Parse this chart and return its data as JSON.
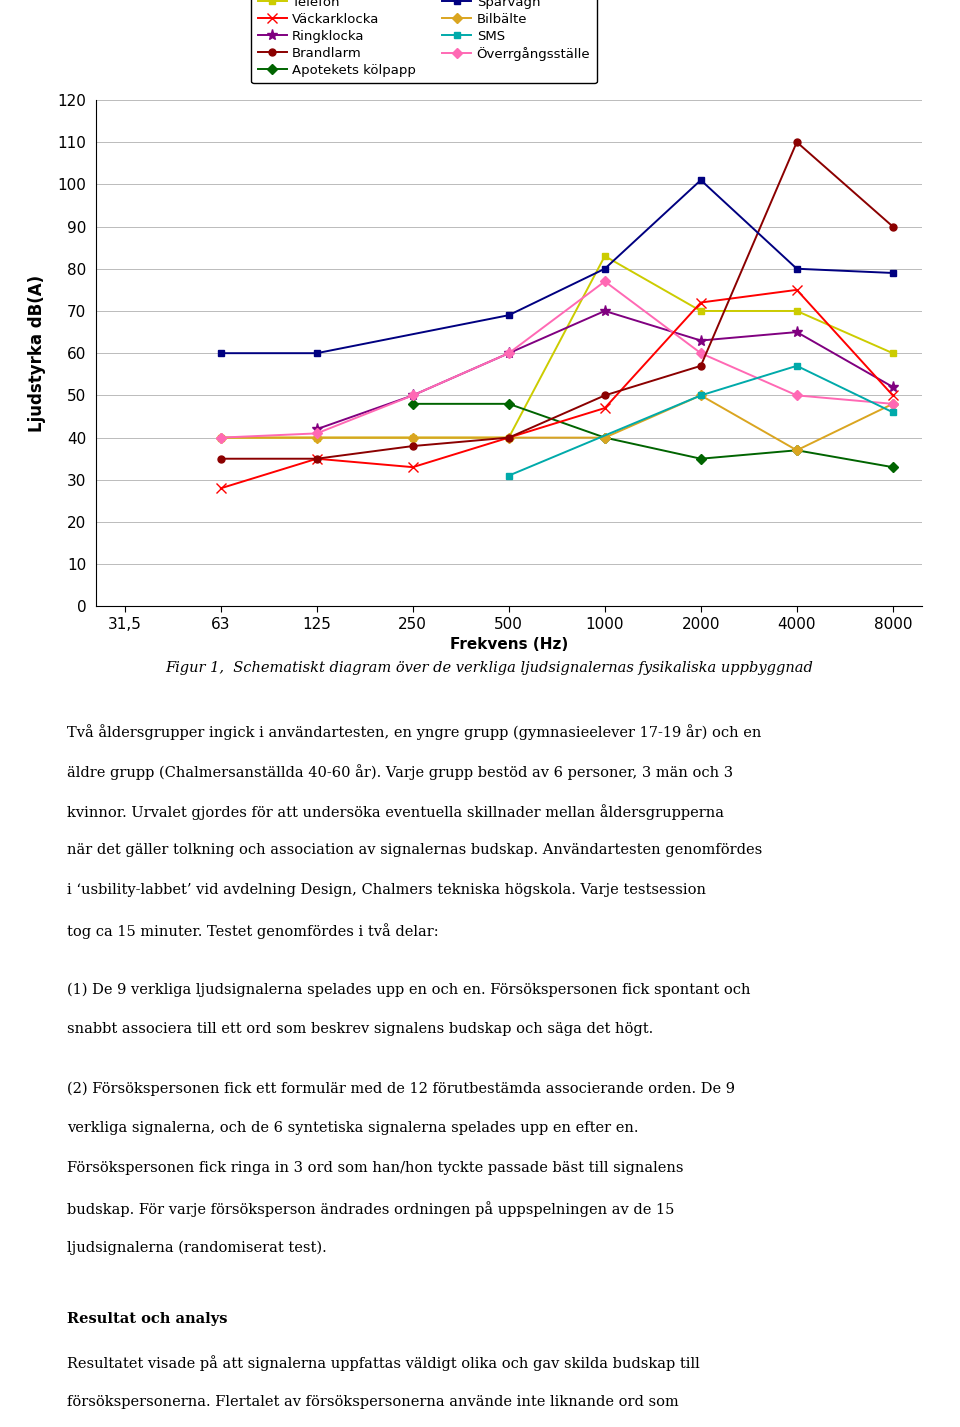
{
  "x_labels": [
    "31,5",
    "63",
    "125",
    "250",
    "500",
    "1000",
    "2000",
    "4000",
    "8000"
  ],
  "series_order_left": [
    "Telefon",
    "Ringklocka",
    "Apotekets kölpapp",
    "Bilbälte",
    "Överrgångsställe"
  ],
  "series_order_right": [
    "Väckarklocka",
    "Brandlarm",
    "Spårvagn",
    "SMS"
  ],
  "series": {
    "Telefon": {
      "color": "#CCCC00",
      "marker": "s",
      "markersize": 5,
      "values": [
        null,
        40,
        40,
        40,
        40,
        83,
        70,
        70,
        60
      ]
    },
    "Väckarklocka": {
      "color": "#FF0000",
      "marker": "x",
      "markersize": 7,
      "values": [
        null,
        28,
        35,
        33,
        null,
        47,
        72,
        75,
        50
      ]
    },
    "Ringklocka": {
      "color": "#800080",
      "marker": "*",
      "markersize": 8,
      "values": [
        null,
        null,
        42,
        50,
        60,
        70,
        63,
        65,
        52
      ]
    },
    "Brandlarm": {
      "color": "#8B0000",
      "marker": "o",
      "markersize": 5,
      "values": [
        null,
        35,
        35,
        38,
        40,
        50,
        57,
        110,
        90
      ]
    },
    "Apotekets kölpapp": {
      "color": "#006400",
      "marker": "D",
      "markersize": 5,
      "values": [
        null,
        null,
        null,
        48,
        48,
        40,
        35,
        37,
        33
      ]
    },
    "Spårvagn": {
      "color": "#000080",
      "marker": "s",
      "markersize": 5,
      "values": [
        null,
        60,
        60,
        null,
        69,
        80,
        101,
        80,
        79
      ]
    },
    "Bilbälte": {
      "color": "#DAA520",
      "marker": "D",
      "markersize": 5,
      "values": [
        null,
        40,
        40,
        40,
        40,
        40,
        50,
        37,
        48
      ]
    },
    "SMS": {
      "color": "#00AAAA",
      "marker": "s",
      "markersize": 5,
      "values": [
        null,
        null,
        null,
        null,
        31,
        null,
        50,
        57,
        46
      ]
    },
    "Överrgångsställe": {
      "color": "#FF69B4",
      "marker": "D",
      "markersize": 5,
      "values": [
        null,
        40,
        41,
        50,
        60,
        77,
        60,
        50,
        48
      ]
    }
  },
  "ylabel": "Ljudstyrka dB(A)",
  "xlabel": "Frekvens (Hz)",
  "ylim": [
    0,
    120
  ],
  "yticks": [
    0,
    10,
    20,
    30,
    40,
    50,
    60,
    70,
    80,
    90,
    100,
    110,
    120
  ],
  "figsize": [
    9.6,
    14.27
  ],
  "dpi": 100,
  "figure_caption": "Figur 1,  Schematiskt diagram över de verkliga ljudsignalernas fysikaliska uppbyggnad",
  "para1": "Två åldersgrupper ingick i användartesten, en yngre grupp (gymnasieelever 17-19 år) och en äldre grupp (Chalmersanställda 40-60 år). Varje grupp bestöd av 6 personer, 3 män och 3 kvinnor. Urvalet gjordes för att undersöka eventuella skillnader mellan åldersgrupperna när det gäller tolkning och association av signalernas budskap. Användartesten genomfördes i ‘usbility-labbet’ vid avdelning Design, Chalmers tekniska högskola. Varje testsession tog ca 15 minuter. Testet genomfördes i två delar:",
  "para2": "(1) De 9 verkliga ljudsignalerna spelades upp en och en. Försökspersonen fick spontant och snabbt associera till ett ord som beskrev signalens budskap och säga det högt.",
  "para3": "(2) Försökspersonen fick ett formulär med de 12 förutbestämda associerande orden. De 9 verkliga signalerna, och de 6 syntetiska signalerna spelades upp en efter en. Försökspersonen fick ringa in 3 ord som han/hon tyckte passade bäst till signalens budskap. För varje försöksperson ändrades ordningen på uppspelningen av de 15 ljudsignalerna (randomiserat test).",
  "heading_resultat": "Resultat och analys",
  "para4": "Resultatet visade på att signalerna uppfattas väldigt olika och gav skilda budskap till försökspersonerna. Flertalet av försökspersonerna använde inte liknande ord som referensorden för att beskriva respektive signal. Mer än hälften av de ord som försökspersonerna valde uppvisade ett helt annat uttryck eller ibland raka motsatsen jämfört med referensorden. Uppskattningsvis 1/3 av de ord som försökspersonerna valde uttryckte samma känsla och budskap som referensorden. Detta visar på att olika människor och åldersgrupper tolkar och associerar ljud väldigt olika och använder sig dessutom av ett varierande språk för att uttrycka sin ljudkänsla."
}
